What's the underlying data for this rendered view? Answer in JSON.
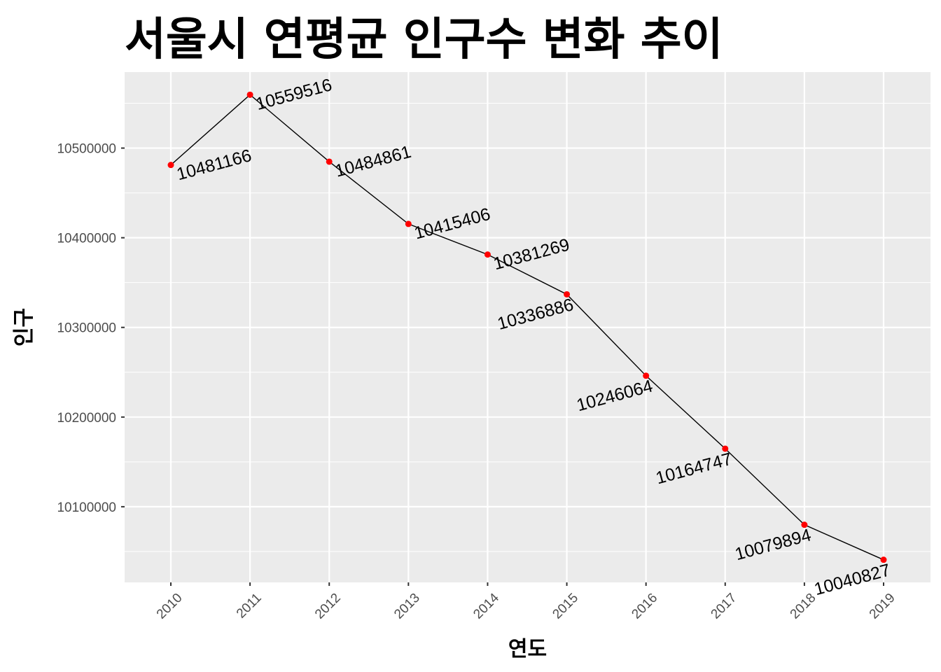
{
  "chart_data": {
    "type": "line",
    "title": "서울시 연평균 인구수 변화 추이",
    "xlabel": "연도",
    "ylabel": "인구",
    "x": [
      2010,
      2011,
      2012,
      2013,
      2014,
      2015,
      2016,
      2017,
      2018,
      2019
    ],
    "x_tick_labels": [
      "2010",
      "2011",
      "2012",
      "2013",
      "2014",
      "2015",
      "2016",
      "2017",
      "2018",
      "2019"
    ],
    "y": [
      10481166,
      10559516,
      10484861,
      10415406,
      10381269,
      10336886,
      10246064,
      10164747,
      10079894,
      10040827
    ],
    "point_labels": [
      "10481166",
      "10559516",
      "10484861",
      "10415406",
      "10381269",
      "10336886",
      "10246064",
      "10164747",
      "10079894",
      "10040827"
    ],
    "y_ticks": [
      10100000,
      10200000,
      10300000,
      10400000,
      10500000
    ],
    "y_tick_labels": [
      "10100000",
      "10200000",
      "10300000",
      "10400000",
      "10500000"
    ],
    "ylim": [
      10015593,
      10584750
    ],
    "grid": true,
    "line_color": "#000000",
    "point_color": "#ff0000",
    "panel_color": "#ebebeb",
    "grid_color": "#ffffff"
  }
}
